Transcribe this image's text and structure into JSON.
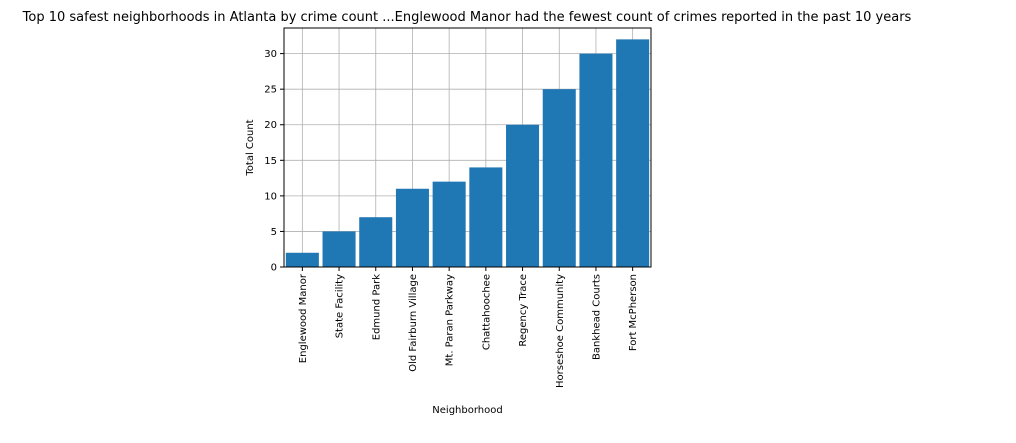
{
  "chart_data": {
    "type": "bar",
    "title": "Top 10 safest neighborhoods in Atlanta by crime count ...Englewood Manor had the fewest count of crimes reported in the past 10 years",
    "xlabel": "Neighborhood",
    "ylabel": "Total Count",
    "categories": [
      "Englewood Manor",
      "State Facility",
      "Edmund Park",
      "Old Fairburn Village",
      "Mt. Paran Parkway",
      "Chattahoochee",
      "Regency Trace",
      "Horseshoe Community",
      "Bankhead Courts",
      "Fort McPherson"
    ],
    "values": [
      2,
      5,
      7,
      11,
      12,
      14,
      20,
      25,
      30,
      32
    ],
    "ylim": [
      0,
      33.6
    ],
    "yticks": [
      0,
      5,
      10,
      15,
      20,
      25,
      30
    ],
    "grid": true,
    "legend": "none",
    "colors": {
      "bar": "#1f77b4",
      "grid": "#b0b0b0",
      "axis": "#000000"
    }
  }
}
